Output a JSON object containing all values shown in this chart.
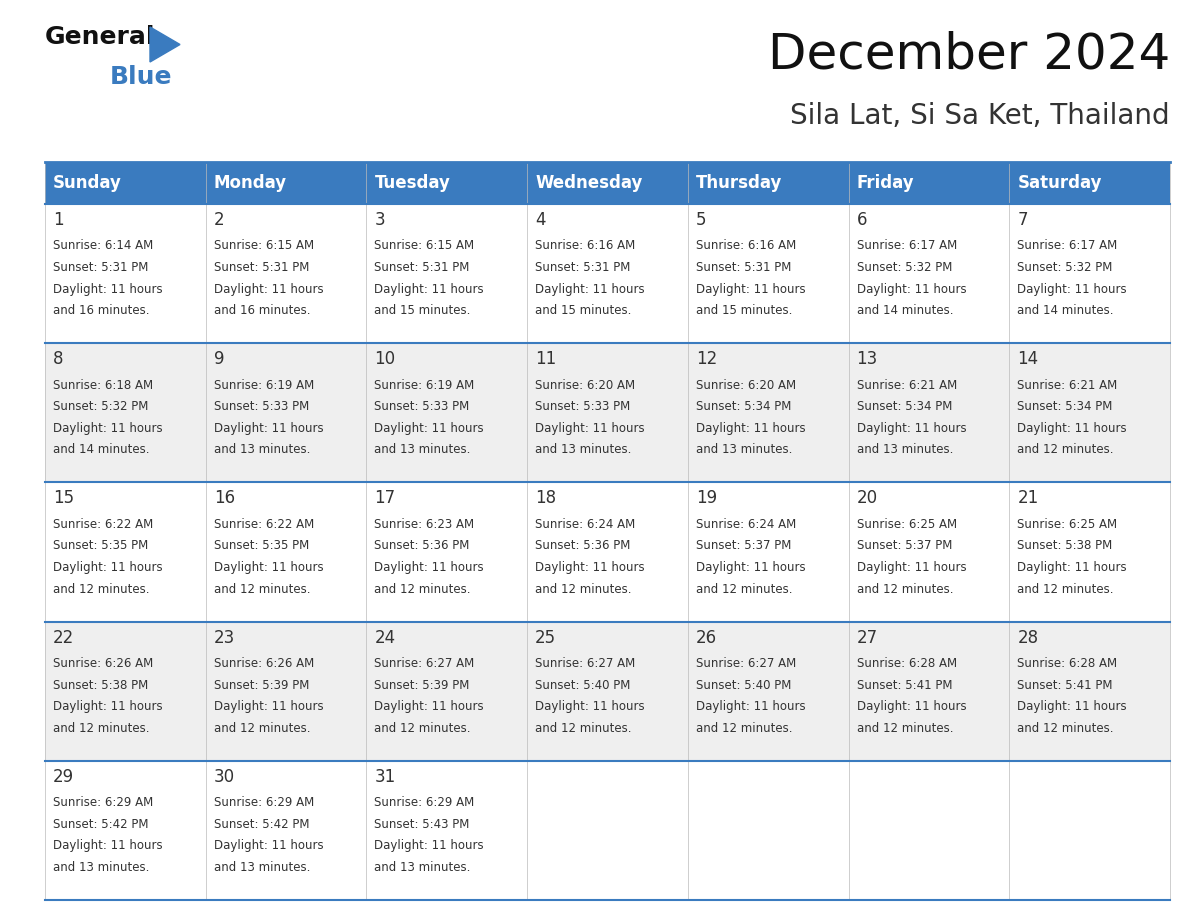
{
  "title": "December 2024",
  "subtitle": "Sila Lat, Si Sa Ket, Thailand",
  "header_color": "#3A7BBF",
  "header_text_color": "#FFFFFF",
  "days_of_week": [
    "Sunday",
    "Monday",
    "Tuesday",
    "Wednesday",
    "Thursday",
    "Friday",
    "Saturday"
  ],
  "bg_color": "#FFFFFF",
  "cell_bg_even": "#EFEFEF",
  "cell_bg_odd": "#FFFFFF",
  "border_color": "#3A7BBF",
  "text_color": "#333333",
  "calendar_data": [
    [
      {
        "day": 1,
        "sunrise": "6:14 AM",
        "sunset": "5:31 PM",
        "daylight_h": "11 hours",
        "daylight_m": "16 minutes"
      },
      {
        "day": 2,
        "sunrise": "6:15 AM",
        "sunset": "5:31 PM",
        "daylight_h": "11 hours",
        "daylight_m": "16 minutes"
      },
      {
        "day": 3,
        "sunrise": "6:15 AM",
        "sunset": "5:31 PM",
        "daylight_h": "11 hours",
        "daylight_m": "15 minutes"
      },
      {
        "day": 4,
        "sunrise": "6:16 AM",
        "sunset": "5:31 PM",
        "daylight_h": "11 hours",
        "daylight_m": "15 minutes"
      },
      {
        "day": 5,
        "sunrise": "6:16 AM",
        "sunset": "5:31 PM",
        "daylight_h": "11 hours",
        "daylight_m": "15 minutes"
      },
      {
        "day": 6,
        "sunrise": "6:17 AM",
        "sunset": "5:32 PM",
        "daylight_h": "11 hours",
        "daylight_m": "14 minutes"
      },
      {
        "day": 7,
        "sunrise": "6:17 AM",
        "sunset": "5:32 PM",
        "daylight_h": "11 hours",
        "daylight_m": "14 minutes"
      }
    ],
    [
      {
        "day": 8,
        "sunrise": "6:18 AM",
        "sunset": "5:32 PM",
        "daylight_h": "11 hours",
        "daylight_m": "14 minutes"
      },
      {
        "day": 9,
        "sunrise": "6:19 AM",
        "sunset": "5:33 PM",
        "daylight_h": "11 hours",
        "daylight_m": "13 minutes"
      },
      {
        "day": 10,
        "sunrise": "6:19 AM",
        "sunset": "5:33 PM",
        "daylight_h": "11 hours",
        "daylight_m": "13 minutes"
      },
      {
        "day": 11,
        "sunrise": "6:20 AM",
        "sunset": "5:33 PM",
        "daylight_h": "11 hours",
        "daylight_m": "13 minutes"
      },
      {
        "day": 12,
        "sunrise": "6:20 AM",
        "sunset": "5:34 PM",
        "daylight_h": "11 hours",
        "daylight_m": "13 minutes"
      },
      {
        "day": 13,
        "sunrise": "6:21 AM",
        "sunset": "5:34 PM",
        "daylight_h": "11 hours",
        "daylight_m": "13 minutes"
      },
      {
        "day": 14,
        "sunrise": "6:21 AM",
        "sunset": "5:34 PM",
        "daylight_h": "11 hours",
        "daylight_m": "12 minutes"
      }
    ],
    [
      {
        "day": 15,
        "sunrise": "6:22 AM",
        "sunset": "5:35 PM",
        "daylight_h": "11 hours",
        "daylight_m": "12 minutes"
      },
      {
        "day": 16,
        "sunrise": "6:22 AM",
        "sunset": "5:35 PM",
        "daylight_h": "11 hours",
        "daylight_m": "12 minutes"
      },
      {
        "day": 17,
        "sunrise": "6:23 AM",
        "sunset": "5:36 PM",
        "daylight_h": "11 hours",
        "daylight_m": "12 minutes"
      },
      {
        "day": 18,
        "sunrise": "6:24 AM",
        "sunset": "5:36 PM",
        "daylight_h": "11 hours",
        "daylight_m": "12 minutes"
      },
      {
        "day": 19,
        "sunrise": "6:24 AM",
        "sunset": "5:37 PM",
        "daylight_h": "11 hours",
        "daylight_m": "12 minutes"
      },
      {
        "day": 20,
        "sunrise": "6:25 AM",
        "sunset": "5:37 PM",
        "daylight_h": "11 hours",
        "daylight_m": "12 minutes"
      },
      {
        "day": 21,
        "sunrise": "6:25 AM",
        "sunset": "5:38 PM",
        "daylight_h": "11 hours",
        "daylight_m": "12 minutes"
      }
    ],
    [
      {
        "day": 22,
        "sunrise": "6:26 AM",
        "sunset": "5:38 PM",
        "daylight_h": "11 hours",
        "daylight_m": "12 minutes"
      },
      {
        "day": 23,
        "sunrise": "6:26 AM",
        "sunset": "5:39 PM",
        "daylight_h": "11 hours",
        "daylight_m": "12 minutes"
      },
      {
        "day": 24,
        "sunrise": "6:27 AM",
        "sunset": "5:39 PM",
        "daylight_h": "11 hours",
        "daylight_m": "12 minutes"
      },
      {
        "day": 25,
        "sunrise": "6:27 AM",
        "sunset": "5:40 PM",
        "daylight_h": "11 hours",
        "daylight_m": "12 minutes"
      },
      {
        "day": 26,
        "sunrise": "6:27 AM",
        "sunset": "5:40 PM",
        "daylight_h": "11 hours",
        "daylight_m": "12 minutes"
      },
      {
        "day": 27,
        "sunrise": "6:28 AM",
        "sunset": "5:41 PM",
        "daylight_h": "11 hours",
        "daylight_m": "12 minutes"
      },
      {
        "day": 28,
        "sunrise": "6:28 AM",
        "sunset": "5:41 PM",
        "daylight_h": "11 hours",
        "daylight_m": "12 minutes"
      }
    ],
    [
      {
        "day": 29,
        "sunrise": "6:29 AM",
        "sunset": "5:42 PM",
        "daylight_h": "11 hours",
        "daylight_m": "13 minutes"
      },
      {
        "day": 30,
        "sunrise": "6:29 AM",
        "sunset": "5:42 PM",
        "daylight_h": "11 hours",
        "daylight_m": "13 minutes"
      },
      {
        "day": 31,
        "sunrise": "6:29 AM",
        "sunset": "5:43 PM",
        "daylight_h": "11 hours",
        "daylight_m": "13 minutes"
      },
      null,
      null,
      null,
      null
    ]
  ]
}
